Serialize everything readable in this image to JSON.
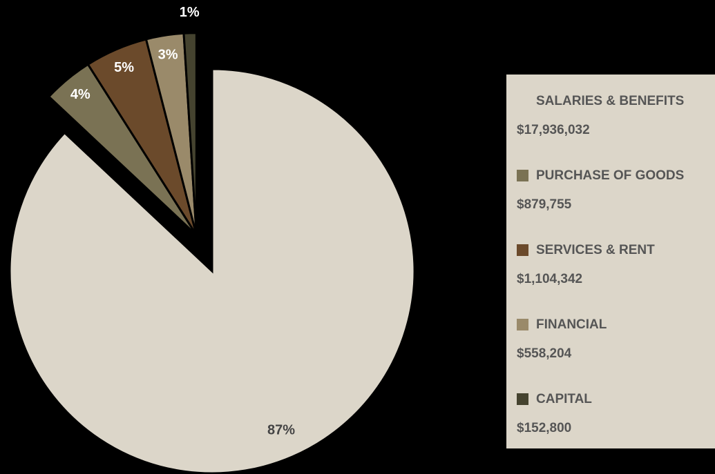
{
  "chart_data": {
    "type": "pie",
    "categories": [
      "SALARIES & BENEFITS",
      "PURCHASE OF GOODS",
      "SERVICES & RENT",
      "FINANCIAL",
      "CAPITAL"
    ],
    "values": [
      87,
      4,
      5,
      3,
      1
    ],
    "value_labels": [
      "87%",
      "4%",
      "5%",
      "3%",
      "1%"
    ],
    "amounts": [
      "$17,936,032",
      "$879,755",
      "$1,104,342",
      "$558,204",
      "$152,800"
    ],
    "colors": [
      "#dcd6c9",
      "#7a7254",
      "#6b4a2b",
      "#9a8a6a",
      "#45432f"
    ],
    "label_colors": [
      "#444444",
      "#ffffff",
      "#ffffff",
      "#ffffff",
      "#ffffff"
    ],
    "legend": "right"
  }
}
